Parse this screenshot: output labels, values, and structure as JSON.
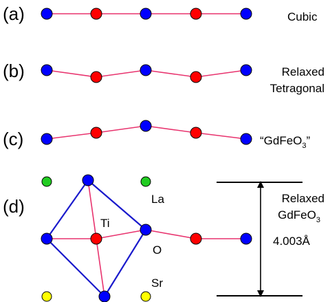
{
  "panels": [
    {
      "id": "a",
      "label": "(a)",
      "caption": [
        "Cubic"
      ]
    },
    {
      "id": "b",
      "label": "(b)",
      "caption": [
        "Relaxed",
        "Tetragonal"
      ]
    },
    {
      "id": "c",
      "label": "(c)",
      "caption": {
        "text": "“GdFeO",
        "sub": "3",
        "tail": "”"
      }
    },
    {
      "id": "d",
      "label": "(d)",
      "caption": {
        "line1": "Relaxed",
        "line2": "GdFeO",
        "line2_sub": "3",
        "distance": "4.003Å"
      }
    }
  ],
  "atom_labels": {
    "la": "La",
    "ti": "Ti",
    "o": "O",
    "sr": "Sr"
  },
  "colors": {
    "ti_atom": "#ff0000",
    "o_atom": "#0000ff",
    "la_atom": "#22cc22",
    "sr_atom": "#ffff00",
    "chain_bond": "#e8336e",
    "octahedron_edge": "#1a1acc"
  }
}
